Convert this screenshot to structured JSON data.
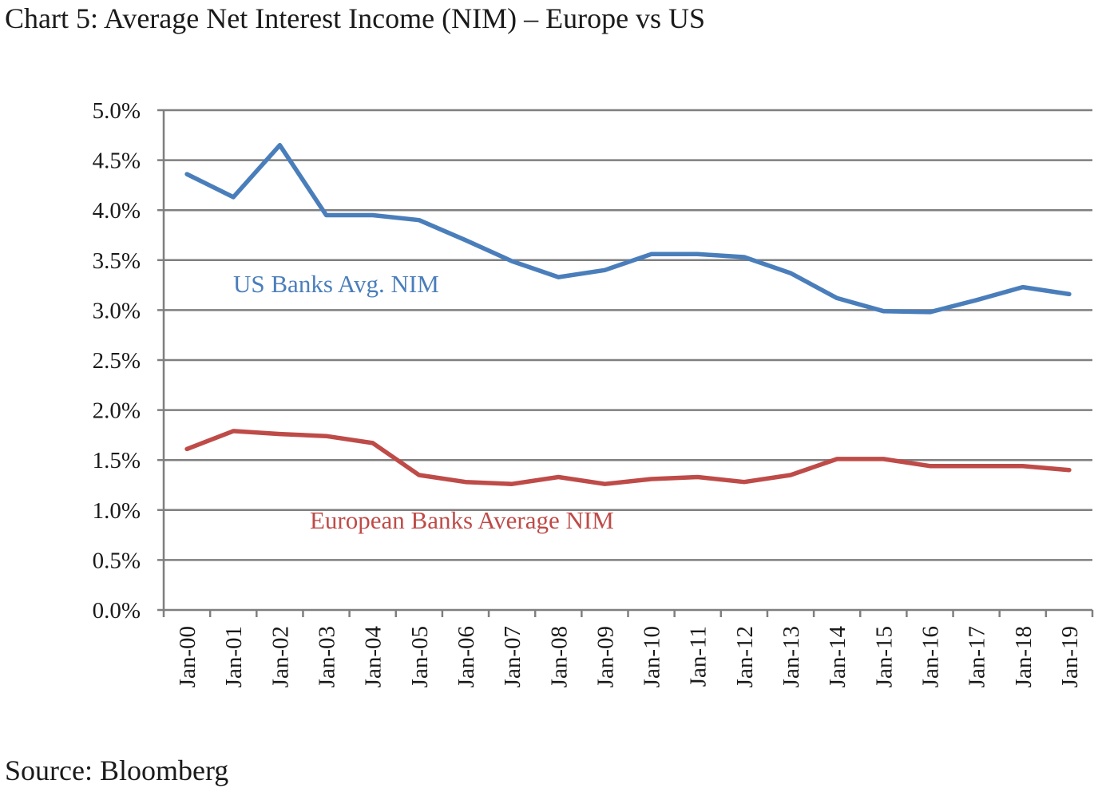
{
  "title": "Chart 5: Average Net Interest Income (NIM) – Europe vs US",
  "source": "Source: Bloomberg",
  "chart_data": {
    "type": "line",
    "title": "Chart 5: Average Net Interest Income (NIM) – Europe vs US",
    "xlabel": "",
    "ylabel": "",
    "ylim": [
      0,
      5.0
    ],
    "yticks": [
      0.0,
      0.5,
      1.0,
      1.5,
      2.0,
      2.5,
      3.0,
      3.5,
      4.0,
      4.5,
      5.0
    ],
    "ytick_labels": [
      "0.0%",
      "0.5%",
      "1.0%",
      "1.5%",
      "2.0%",
      "2.5%",
      "3.0%",
      "3.5%",
      "4.0%",
      "4.5%",
      "5.0%"
    ],
    "grid": true,
    "legend": "inline labels",
    "categories": [
      "Jan-00",
      "Jan-01",
      "Jan-02",
      "Jan-03",
      "Jan-04",
      "Jan-05",
      "Jan-06",
      "Jan-07",
      "Jan-08",
      "Jan-09",
      "Jan-10",
      "Jan-11",
      "Jan-12",
      "Jan-13",
      "Jan-14",
      "Jan-15",
      "Jan-16",
      "Jan-17",
      "Jan-18",
      "Jan-19"
    ],
    "series": [
      {
        "name": "US Banks Avg. NIM",
        "color": "#4a7ebb",
        "values": [
          4.36,
          4.13,
          4.65,
          3.95,
          3.95,
          3.9,
          3.7,
          3.49,
          3.33,
          3.4,
          3.56,
          3.56,
          3.53,
          3.37,
          3.12,
          2.99,
          2.98,
          3.1,
          3.23,
          3.16
        ]
      },
      {
        "name": "European Banks Average NIM",
        "color": "#be4b48",
        "values": [
          1.61,
          1.79,
          1.76,
          1.74,
          1.67,
          1.35,
          1.28,
          1.26,
          1.33,
          1.26,
          1.31,
          1.33,
          1.28,
          1.35,
          1.51,
          1.51,
          1.44,
          1.44,
          1.44,
          1.4
        ]
      }
    ]
  }
}
